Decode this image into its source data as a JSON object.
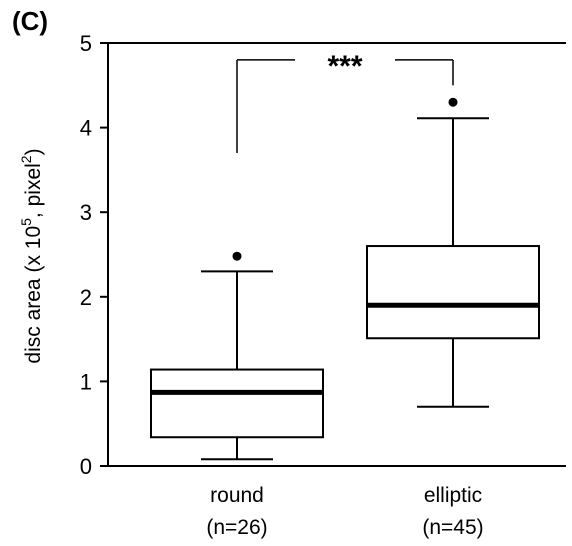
{
  "panel_label": "(C)",
  "colors": {
    "ink": "#000000",
    "background": "#ffffff"
  },
  "chart_data": {
    "type": "boxplot",
    "ylabel": {
      "prefix": "disc area (x 10",
      "sup1": "5",
      "middle": ", pixel",
      "sup2": "2",
      "suffix": ")"
    },
    "ylim": [
      0,
      5
    ],
    "yticks": [
      "0",
      "1",
      "2",
      "3",
      "4",
      "5"
    ],
    "grid": false,
    "categories": [
      {
        "name": "round",
        "n_label": "(n=26)",
        "whisker_low": 0.08,
        "q1": 0.34,
        "median": 0.87,
        "q3": 1.14,
        "whisker_high": 2.3,
        "outliers": [
          2.48
        ]
      },
      {
        "name": "elliptic",
        "n_label": "(n=45)",
        "whisker_low": 0.7,
        "q1": 1.51,
        "median": 1.9,
        "q3": 2.6,
        "whisker_high": 4.11,
        "outliers": [
          4.3
        ]
      }
    ],
    "significance": {
      "label": "***",
      "bracket_y": 4.8,
      "left_drop_to": 3.7,
      "right_drop_to": 4.5
    }
  }
}
